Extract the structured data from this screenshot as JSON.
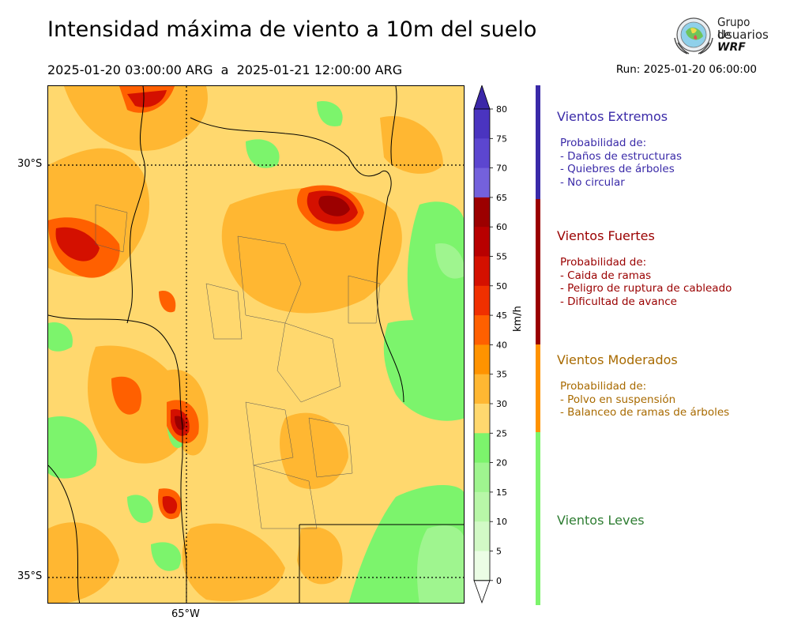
{
  "header": {
    "title": "Intensidad máxima de viento a 10m del suelo",
    "period": "2025-01-20 03:00:00 ARG  a  2025-01-21 12:00:00 ARG",
    "run": "Run: 2025-01-20 06:00:00"
  },
  "logo": {
    "line1": "Grupo de",
    "line2": "Usuarios",
    "line3": "WRF"
  },
  "map": {
    "lat_labels": [
      "30°S",
      "35°S"
    ],
    "lon_label": "65°W"
  },
  "colorbar": {
    "unit": "km/h",
    "ticks": [
      "80",
      "75",
      "70",
      "65",
      "60",
      "55",
      "50",
      "45",
      "40",
      "35",
      "30",
      "25",
      "20",
      "15",
      "10",
      "5",
      "0"
    ],
    "colors_top_to_bottom": [
      "#3b27a8",
      "#4a34c0",
      "#5c46d0",
      "#7461dc",
      "#9c0000",
      "#b80000",
      "#d41000",
      "#f03000",
      "#ff6000",
      "#ff9300",
      "#ffb732",
      "#ffd86e",
      "#7cf46c",
      "#9ff58f",
      "#b8f7a8",
      "#d2f9c6",
      "#ebfde5"
    ]
  },
  "categories": [
    {
      "name": "Vientos Extremos",
      "color": "#3a2aa8",
      "lines": [
        "Probabilidad de:",
        "- Daños de estructuras",
        "- Quiebres de árboles",
        "- No circular"
      ]
    },
    {
      "name": "Vientos Fuertes",
      "color": "#9a0000",
      "lines": [
        "Probabilidad de:",
        "- Caida de ramas",
        "- Peligro de ruptura de cableado",
        "- Dificultad de avance"
      ]
    },
    {
      "name": "Vientos Moderados",
      "color": "#a86a00",
      "lines": [
        "Probabilidad de:",
        "- Polvo en suspensión",
        "- Balanceo de ramas de árboles"
      ]
    },
    {
      "name": "Vientos Leves",
      "color": "#2e7d32",
      "lines": []
    }
  ]
}
